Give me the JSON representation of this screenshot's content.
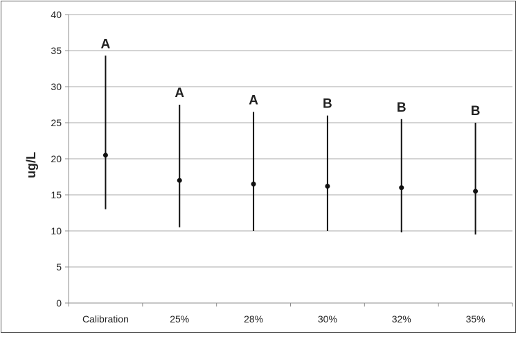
{
  "chart_data": {
    "type": "scatter",
    "ylabel": "ug/L",
    "xlabel": "",
    "title": "",
    "ylim": [
      0,
      40
    ],
    "yticks": [
      0,
      5,
      10,
      15,
      20,
      25,
      30,
      35,
      40
    ],
    "grid": true,
    "categories": [
      "Calibration",
      "25%",
      "28%",
      "30%",
      "32%",
      "35%"
    ],
    "values": [
      20.5,
      17.0,
      16.5,
      16.2,
      16.0,
      15.5
    ],
    "error_low": [
      13.0,
      10.5,
      10.0,
      10.0,
      9.8,
      9.5
    ],
    "error_high": [
      34.3,
      27.5,
      26.5,
      26.0,
      25.5,
      25.0
    ],
    "group_letters": [
      "A",
      "A",
      "A",
      "B",
      "B",
      "B"
    ],
    "colors": {
      "grid": "#a8a8a8",
      "axis": "#8c8c8c",
      "bar": "#111111",
      "point": "#111111",
      "text": "#222222"
    }
  }
}
